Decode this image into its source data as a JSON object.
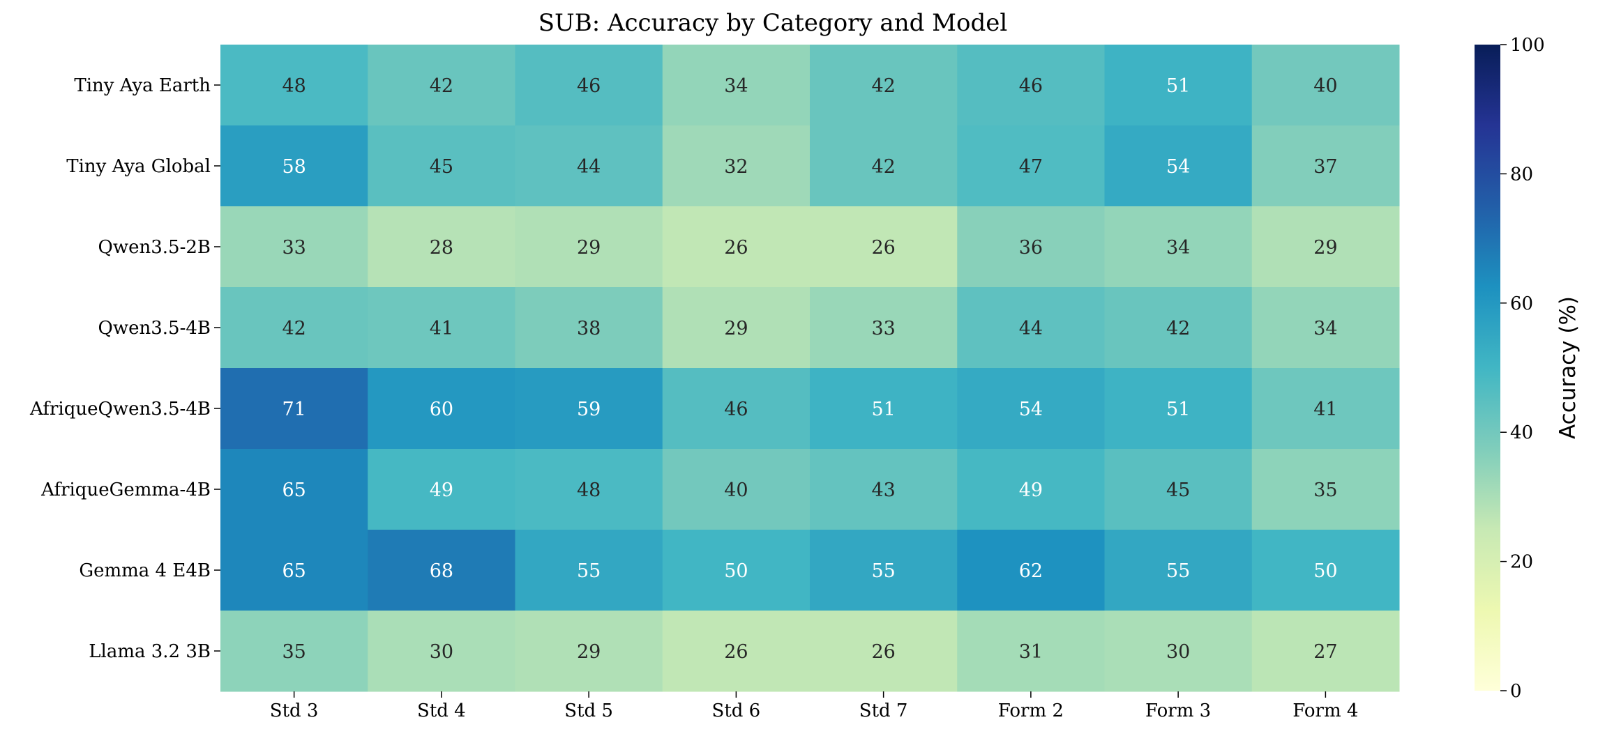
{
  "chart_data": {
    "type": "heatmap",
    "title": "SUB: Accuracy by Category and Model",
    "xlabel": "",
    "ylabel": "",
    "x_categories": [
      "Std 3",
      "Std 4",
      "Std 5",
      "Std 6",
      "Std 7",
      "Form 2",
      "Form 3",
      "Form 4"
    ],
    "y_categories": [
      "Tiny Aya Earth",
      "Tiny Aya Global",
      "Qwen3.5-2B",
      "Qwen3.5-4B",
      "AfriqueQwen3.5-4B",
      "AfriqueGemma-4B",
      "Gemma 4 E4B",
      "Llama 3.2 3B"
    ],
    "values": [
      [
        48,
        42,
        46,
        34,
        42,
        46,
        51,
        40
      ],
      [
        58,
        45,
        44,
        32,
        42,
        47,
        54,
        37
      ],
      [
        33,
        28,
        29,
        26,
        26,
        36,
        34,
        29
      ],
      [
        42,
        41,
        38,
        29,
        33,
        44,
        42,
        34
      ],
      [
        71,
        60,
        59,
        46,
        51,
        54,
        51,
        41
      ],
      [
        65,
        49,
        48,
        40,
        43,
        49,
        45,
        35
      ],
      [
        65,
        68,
        55,
        50,
        55,
        62,
        55,
        50
      ],
      [
        35,
        30,
        29,
        26,
        26,
        31,
        30,
        27
      ]
    ],
    "colorbar": {
      "label": "Accuracy (%)",
      "range": [
        0,
        100
      ],
      "ticks": [
        0,
        20,
        40,
        60,
        80,
        100
      ],
      "colormap": "YlGnBu"
    },
    "grid": false,
    "legend": "colorbar-right"
  }
}
